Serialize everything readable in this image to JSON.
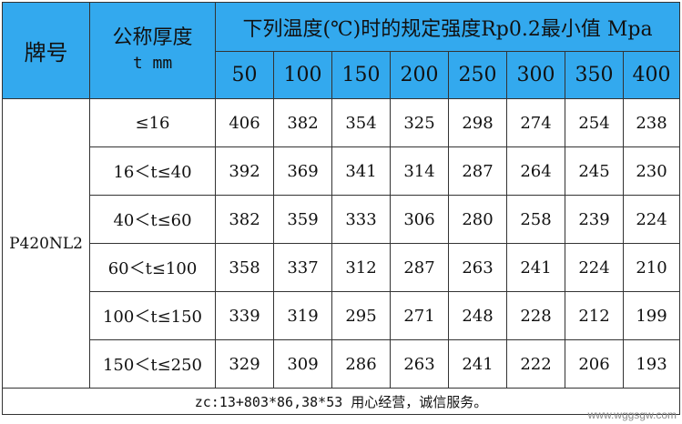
{
  "header": {
    "brand_label": "牌号",
    "thickness_label": "公称厚度",
    "thickness_unit": "t mm",
    "temperature_label": "下列温度(℃)时的规定强度Rp0.2最小值 Mpa",
    "temperatures": [
      "50",
      "100",
      "150",
      "200",
      "250",
      "300",
      "350",
      "400"
    ]
  },
  "brand": "P420NL2",
  "rows": [
    {
      "range": "≤16",
      "values": [
        "406",
        "382",
        "354",
        "325",
        "298",
        "274",
        "254",
        "238"
      ]
    },
    {
      "range": "16＜t≤40",
      "values": [
        "392",
        "369",
        "341",
        "314",
        "287",
        "264",
        "245",
        "230"
      ]
    },
    {
      "range": "40＜t≤60",
      "values": [
        "382",
        "359",
        "333",
        "306",
        "280",
        "258",
        "239",
        "224"
      ]
    },
    {
      "range": "60＜t≤100",
      "values": [
        "358",
        "337",
        "312",
        "287",
        "263",
        "241",
        "224",
        "210"
      ]
    },
    {
      "range": "100＜t≤150",
      "values": [
        "339",
        "319",
        "295",
        "271",
        "248",
        "228",
        "212",
        "199"
      ]
    },
    {
      "range": "150＜t≤250",
      "values": [
        "329",
        "309",
        "286",
        "263",
        "241",
        "222",
        "206",
        "193"
      ]
    }
  ],
  "footer": "zc:13+803*86,38*53 用心经营，诚信服务。",
  "watermark": "www.wggsgw.com",
  "colors": {
    "header_bg": "#33a9ee",
    "border": "#333333"
  }
}
